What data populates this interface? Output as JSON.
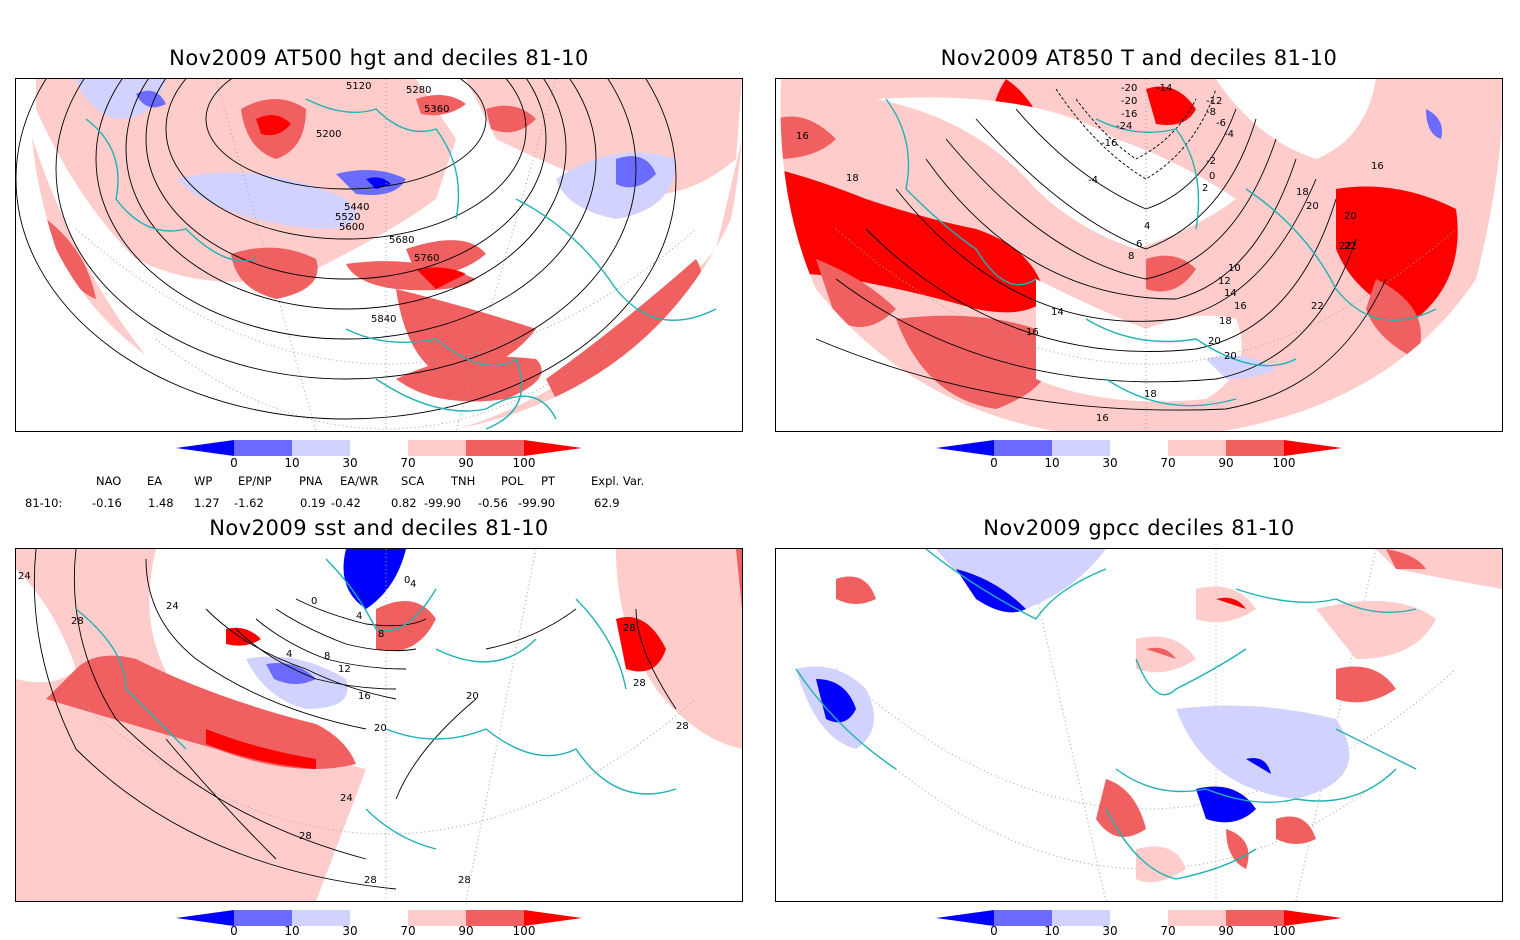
{
  "panels": [
    {
      "title": "Nov2009 AT500 hgt and deciles 81-10",
      "contour_labels": [
        "5120",
        "5200",
        "5280",
        "5360",
        "5440",
        "5520",
        "5600",
        "5680",
        "5760",
        "5840"
      ]
    },
    {
      "title": "Nov2009 AT850 T and deciles 81-10",
      "contour_labels": [
        "-20",
        "-20",
        "-14",
        "-12",
        "-16",
        "-24",
        "-16",
        "-8",
        "-6",
        "-4",
        "-4",
        "-2",
        "0",
        "2",
        "4",
        "6",
        "8",
        "10",
        "12",
        "14",
        "16",
        "16",
        "18",
        "20",
        "22",
        "14",
        "16",
        "18",
        "20",
        "20",
        "18",
        "16",
        "16",
        "18",
        "20",
        "22",
        "22"
      ]
    },
    {
      "title": "Nov2009 sst and deciles 81-10",
      "contour_labels": [
        "24",
        "28",
        "24",
        "0",
        "4",
        "4",
        "8",
        "12",
        "16",
        "20",
        "4",
        "8",
        "0",
        "20",
        "28",
        "28",
        "24",
        "28",
        "28",
        "28",
        "28"
      ]
    },
    {
      "title": "Nov2009 gpcc deciles 81-10",
      "contour_labels": []
    }
  ],
  "colorbar": {
    "ticks": [
      "0",
      "10",
      "30",
      "70",
      "90",
      "100"
    ],
    "colors": {
      "c0": "#0000ff",
      "c1": "#6b6bff",
      "c2": "#d2d2ff",
      "c3": "#ffffff",
      "c4": "#ffcccc",
      "c5": "#f06060",
      "c6": "#ff0000"
    }
  },
  "indices": {
    "headers": [
      "NAO",
      "EA",
      "WP",
      "EP/NP",
      "PNA",
      "EA/WR",
      "SCA",
      "TNH",
      "POL",
      "PT",
      "Expl. Var."
    ],
    "row_label": "81-10:",
    "values": [
      "-0.16",
      "1.48",
      "1.27",
      "-1.62",
      "0.19",
      "-0.42",
      "0.82",
      "-99.90",
      "-0.56",
      "-99.90",
      "62.9"
    ]
  },
  "colors": {
    "coast": "#20b2b2",
    "contour": "#000000",
    "grid": "#a0a0a0",
    "pos_light": "#ffcccc",
    "pos_mid": "#f06060",
    "pos_dark": "#ff0000",
    "neg_light": "#d2d2ff",
    "neg_mid": "#6b6bff",
    "neg_dark": "#0000ff"
  }
}
